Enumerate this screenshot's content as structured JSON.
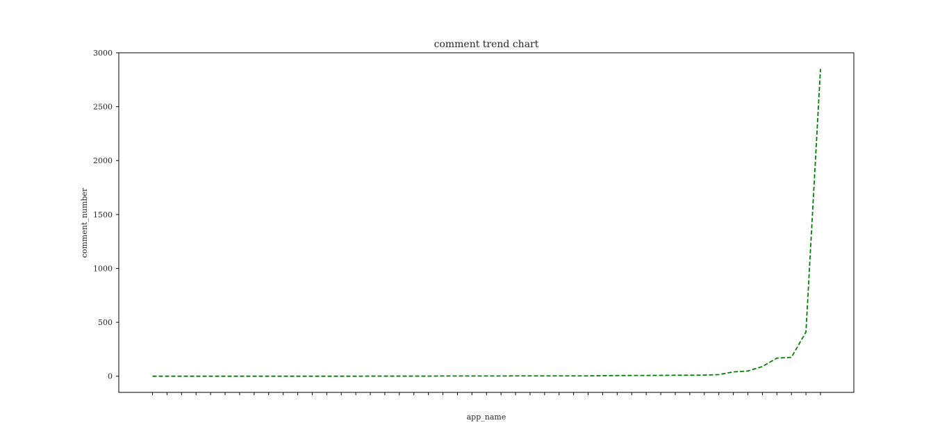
{
  "chart_data": {
    "type": "line",
    "title": "comment trend chart",
    "xlabel": "app_name",
    "ylabel": "comment_number",
    "ylim": [
      -150,
      3000
    ],
    "yticks": [
      0,
      500,
      1000,
      1500,
      2000,
      2500,
      3000
    ],
    "grid": false,
    "legend": "none",
    "line_style": "dashed",
    "line_color": "#008000",
    "series": [
      {
        "values": [
          0,
          0,
          0,
          0,
          0,
          0,
          0,
          0,
          0,
          0,
          0,
          0,
          0,
          0,
          0,
          1,
          1,
          1,
          1,
          1,
          2,
          2,
          2,
          2,
          2,
          3,
          3,
          3,
          3,
          3,
          3,
          5,
          6,
          7,
          7,
          8,
          9,
          9,
          10,
          15,
          40,
          48,
          90,
          168,
          175,
          410,
          2850
        ]
      }
    ]
  }
}
